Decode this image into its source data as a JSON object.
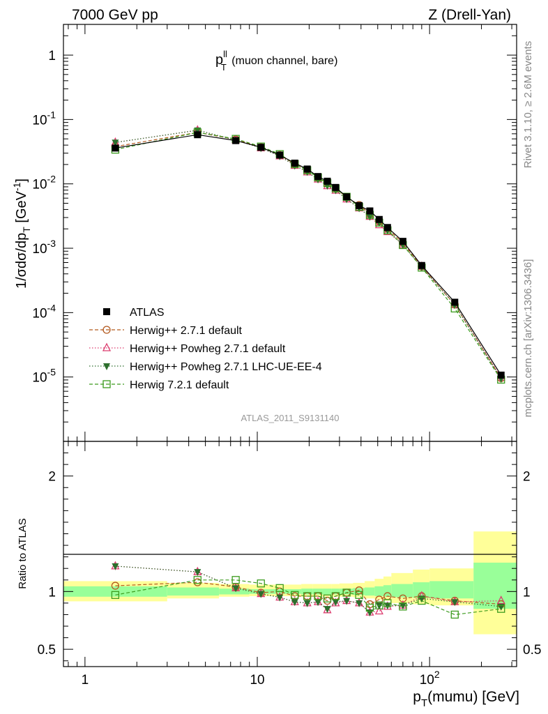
{
  "header": {
    "left": "7000 GeV pp",
    "right": "Z (Drell-Yan)"
  },
  "side_labels": {
    "rivet": "Rivet 3.1.10, ≥ 2.6M events",
    "mcplots": "mcplots.cern.ch [arXiv:1306.3436]"
  },
  "plot_title": {
    "main": "p",
    "sup": "ll",
    "sub": "T",
    "rest": " (muon channel, bare)"
  },
  "analysis_id": "ATLAS_2011_S9131140",
  "axes": {
    "upper_ylabel": "1/σdσ/dp_T [GeV^-1]",
    "ratio_ylabel": "Ratio to ATLAS",
    "xlabel": "p_T(mumu) [GeV]",
    "x_tick_labels": [
      "1",
      "10",
      "10^2"
    ],
    "y_tick_labels": [
      "1",
      "10^-1",
      "10^-2",
      "10^-3",
      "10^-4",
      "10^-5"
    ],
    "ratio_tick_labels": [
      "2",
      "1",
      "0.5"
    ]
  },
  "legend": [
    {
      "label": "ATLAS",
      "color": "#000000",
      "marker": "filled-square"
    },
    {
      "label": "Herwig++ 2.7.1 default",
      "color": "#b35a1f",
      "marker": "open-circle",
      "dash": "5,3"
    },
    {
      "label": "Herwig++ Powheg 2.7.1 default",
      "color": "#dc3c6e",
      "marker": "open-triangle",
      "dash": "1.5,2.5"
    },
    {
      "label": "Herwig++ Powheg 2.7.1 LHC-UE-EE-4",
      "color": "#2d6e2d",
      "marker": "filled-triangle-down",
      "dash": "1.5,2.5"
    },
    {
      "label": "Herwig 7.2.1 default",
      "color": "#3c9b1e",
      "marker": "open-square",
      "dash": "5,3"
    }
  ],
  "colors": {
    "band_yellow": "#ffff99",
    "band_green": "#99ff99"
  },
  "chart_data": [
    {
      "type": "scatter",
      "title": "",
      "xlabel": "p_T(mumu) [GeV]",
      "ylabel": "1/σdσ/dp_T [GeV^-1]",
      "xscale": "log",
      "yscale": "log",
      "xlim": [
        0.75,
        320
      ],
      "ylim": [
        1e-06,
        3
      ],
      "legend_position": "lower-left",
      "x": [
        1.5,
        4.5,
        7.5,
        10.5,
        13.5,
        16.5,
        19.5,
        22.5,
        25.5,
        28.5,
        33,
        39,
        45,
        51,
        57,
        70,
        90,
        140,
        260
      ],
      "series": [
        {
          "name": "ATLAS",
          "values": [
            0.036,
            0.058,
            0.047,
            0.037,
            0.028,
            0.021,
            0.017,
            0.013,
            0.011,
            0.0088,
            0.0063,
            0.0046,
            0.0038,
            0.0028,
            0.0021,
            0.00128,
            0.00054,
            0.000145,
            1.07e-05
          ]
        },
        {
          "name": "Herwig++ 2.7.1 default",
          "values": [
            0.038,
            0.063,
            0.049,
            0.037,
            0.028,
            0.0203,
            0.0163,
            0.0126,
            0.0101,
            0.0085,
            0.0062,
            0.0047,
            0.0034,
            0.0026,
            0.002,
            0.00121,
            0.00052,
            0.000133,
            9.6e-06
          ]
        },
        {
          "name": "Herwig++ Powheg 2.7.1 default",
          "values": [
            0.044,
            0.068,
            0.048,
            0.036,
            0.027,
            0.0193,
            0.0152,
            0.0118,
            0.0093,
            0.0079,
            0.0058,
            0.0042,
            0.0031,
            0.0023,
            0.0018,
            0.00113,
            0.00052,
            0.000132,
            9.9e-06
          ]
        },
        {
          "name": "Herwig++ Powheg 2.7.1 LHC-UE-EE-4",
          "values": [
            0.044,
            0.068,
            0.048,
            0.036,
            0.027,
            0.0193,
            0.0154,
            0.0118,
            0.0094,
            0.008,
            0.0058,
            0.0042,
            0.0031,
            0.0025,
            0.0019,
            0.00113,
            0.00051,
            0.000133,
            9.4e-06
          ]
        },
        {
          "name": "Herwig 7.2.1 default",
          "values": [
            0.034,
            0.063,
            0.05,
            0.038,
            0.029,
            0.0203,
            0.0163,
            0.0126,
            0.0103,
            0.0085,
            0.0063,
            0.0044,
            0.0033,
            0.0025,
            0.0019,
            0.00112,
            0.0005,
            0.000116,
            9.1e-06
          ]
        }
      ]
    },
    {
      "type": "scatter",
      "title": "",
      "xlabel": "p_T(mumu) [GeV]",
      "ylabel": "Ratio to ATLAS",
      "xscale": "log",
      "xlim": [
        0.75,
        320
      ],
      "ylim": [
        0.35,
        2.3
      ],
      "x": [
        1.5,
        4.5,
        7.5,
        10.5,
        13.5,
        16.5,
        19.5,
        22.5,
        25.5,
        28.5,
        33,
        39,
        45,
        51,
        57,
        70,
        90,
        140,
        260
      ],
      "bands": {
        "edges": [
          0.75,
          3,
          6,
          9,
          12,
          15,
          18,
          21,
          24,
          27,
          30,
          36,
          42,
          48,
          54,
          60,
          80,
          100,
          180,
          320
        ],
        "total_low": [
          0.915,
          0.94,
          0.955,
          0.96,
          0.96,
          0.96,
          0.955,
          0.955,
          0.955,
          0.955,
          0.955,
          0.95,
          0.94,
          0.93,
          0.92,
          0.9,
          0.89,
          0.88,
          0.63
        ],
        "total_high": [
          1.09,
          1.075,
          1.065,
          1.06,
          1.06,
          1.06,
          1.065,
          1.065,
          1.065,
          1.065,
          1.07,
          1.075,
          1.09,
          1.11,
          1.13,
          1.16,
          1.19,
          1.2,
          1.52
        ],
        "stat_low": [
          0.955,
          0.965,
          0.975,
          0.98,
          0.98,
          0.98,
          0.975,
          0.975,
          0.975,
          0.975,
          0.975,
          0.97,
          0.965,
          0.96,
          0.955,
          0.95,
          0.945,
          0.94,
          0.85
        ],
        "stat_high": [
          1.045,
          1.035,
          1.025,
          1.02,
          1.02,
          1.02,
          1.025,
          1.025,
          1.025,
          1.025,
          1.025,
          1.03,
          1.035,
          1.045,
          1.055,
          1.065,
          1.08,
          1.09,
          1.25
        ]
      },
      "series": [
        {
          "name": "Herwig++ 2.7.1 default",
          "values": [
            1.05,
            1.08,
            1.04,
            0.99,
            1.0,
            0.96,
            0.96,
            0.96,
            0.92,
            0.96,
            0.99,
            1.01,
            0.89,
            0.93,
            0.96,
            0.94,
            0.96,
            0.92,
            0.89
          ]
        },
        {
          "name": "Herwig++ Powheg 2.7.1 default",
          "values": [
            1.22,
            1.17,
            1.03,
            0.98,
            0.95,
            0.91,
            0.9,
            0.91,
            0.84,
            0.9,
            0.92,
            0.9,
            0.82,
            0.83,
            0.87,
            0.88,
            0.96,
            0.91,
            0.92
          ]
        },
        {
          "name": "Herwig++ Powheg 2.7.1 LHC-UE-EE-4",
          "values": [
            1.22,
            1.17,
            1.03,
            0.98,
            0.95,
            0.91,
            0.9,
            0.91,
            0.85,
            0.91,
            0.92,
            0.9,
            0.82,
            0.88,
            0.88,
            0.88,
            0.94,
            0.91,
            0.87
          ]
        },
        {
          "name": "Herwig 7.2.1 default",
          "values": [
            0.97,
            1.1,
            1.1,
            1.07,
            1.03,
            0.97,
            0.96,
            0.96,
            0.94,
            0.96,
            0.99,
            0.97,
            0.86,
            0.88,
            0.9,
            0.87,
            0.92,
            0.8,
            0.85
          ]
        }
      ]
    }
  ]
}
